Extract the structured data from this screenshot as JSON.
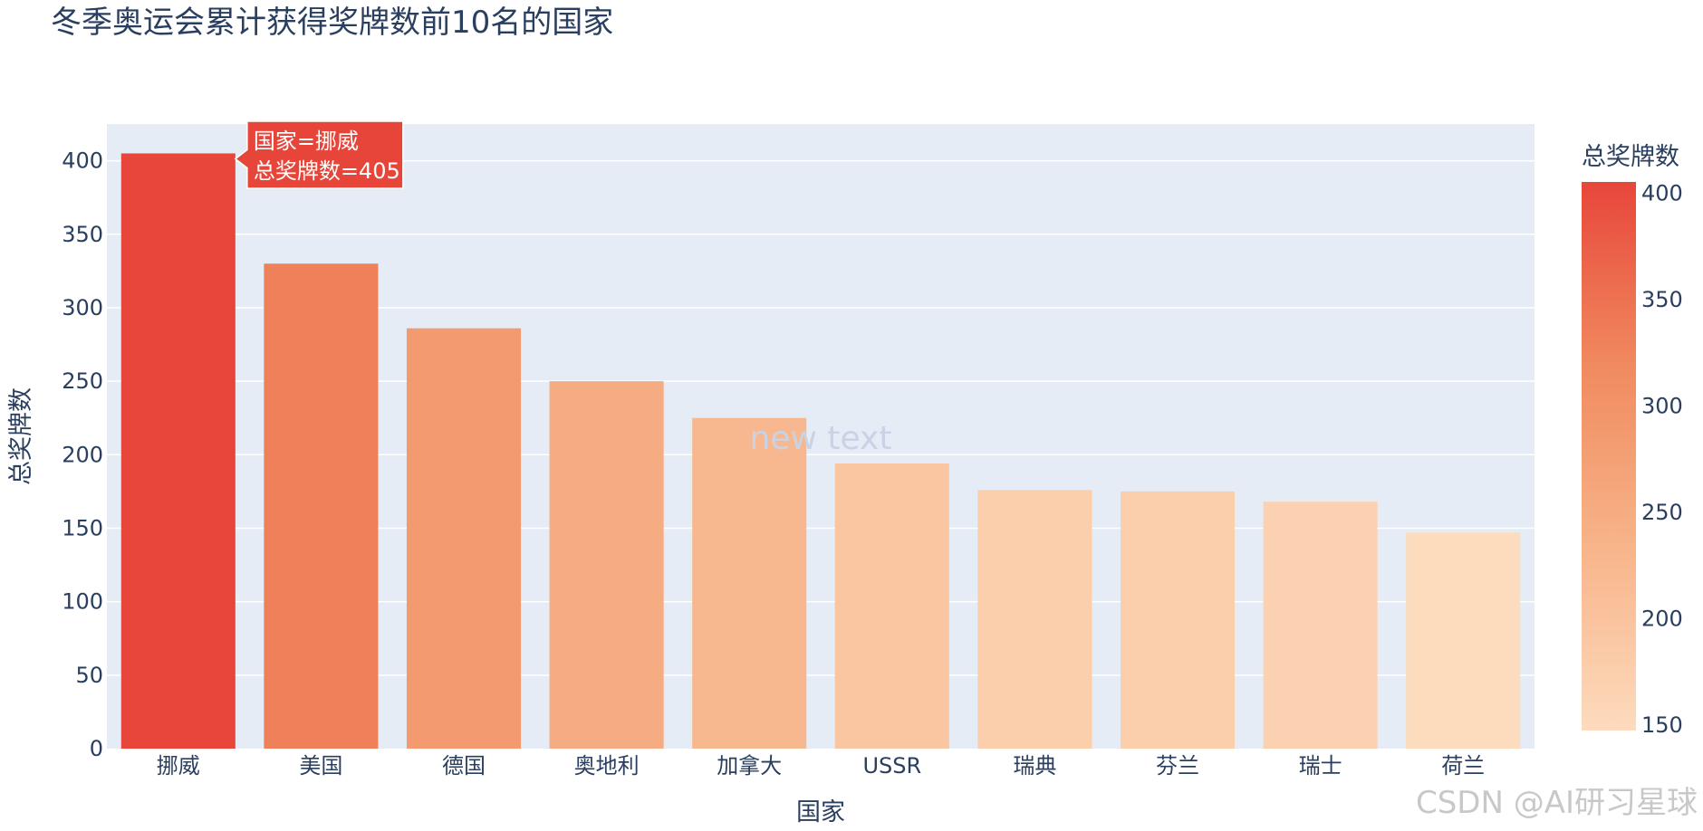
{
  "chart_data": {
    "type": "bar",
    "title": "冬季奥运会累计获得奖牌数前10名的国家",
    "xlabel": "国家",
    "ylabel": "总奖牌数",
    "categories": [
      "挪威",
      "美国",
      "德国",
      "奥地利",
      "加拿大",
      "USSR",
      "瑞典",
      "芬兰",
      "瑞士",
      "荷兰"
    ],
    "values": [
      405,
      330,
      286,
      250,
      225,
      194,
      176,
      175,
      168,
      147
    ],
    "ylim": [
      0,
      425
    ],
    "yticks": [
      0,
      50,
      100,
      150,
      200,
      250,
      300,
      350,
      400
    ],
    "grid": true,
    "colorbar": {
      "title": "总奖牌数",
      "range": [
        147,
        405
      ],
      "ticks": [
        150,
        200,
        250,
        300,
        350,
        400
      ],
      "colorscale": [
        "#fddbbd",
        "#f8b48a",
        "#f08a5f",
        "#e8463b"
      ]
    },
    "hover": {
      "index": 0,
      "line1": "国家=挪威",
      "line2": "总奖牌数=405",
      "bg": "#e8453a"
    },
    "annotation": "new text"
  },
  "colors": {
    "plot_bg": "#e5ecf6",
    "grid": "#ffffff",
    "text": "#2a3f5f"
  },
  "watermark": "CSDN @AI研习星球"
}
